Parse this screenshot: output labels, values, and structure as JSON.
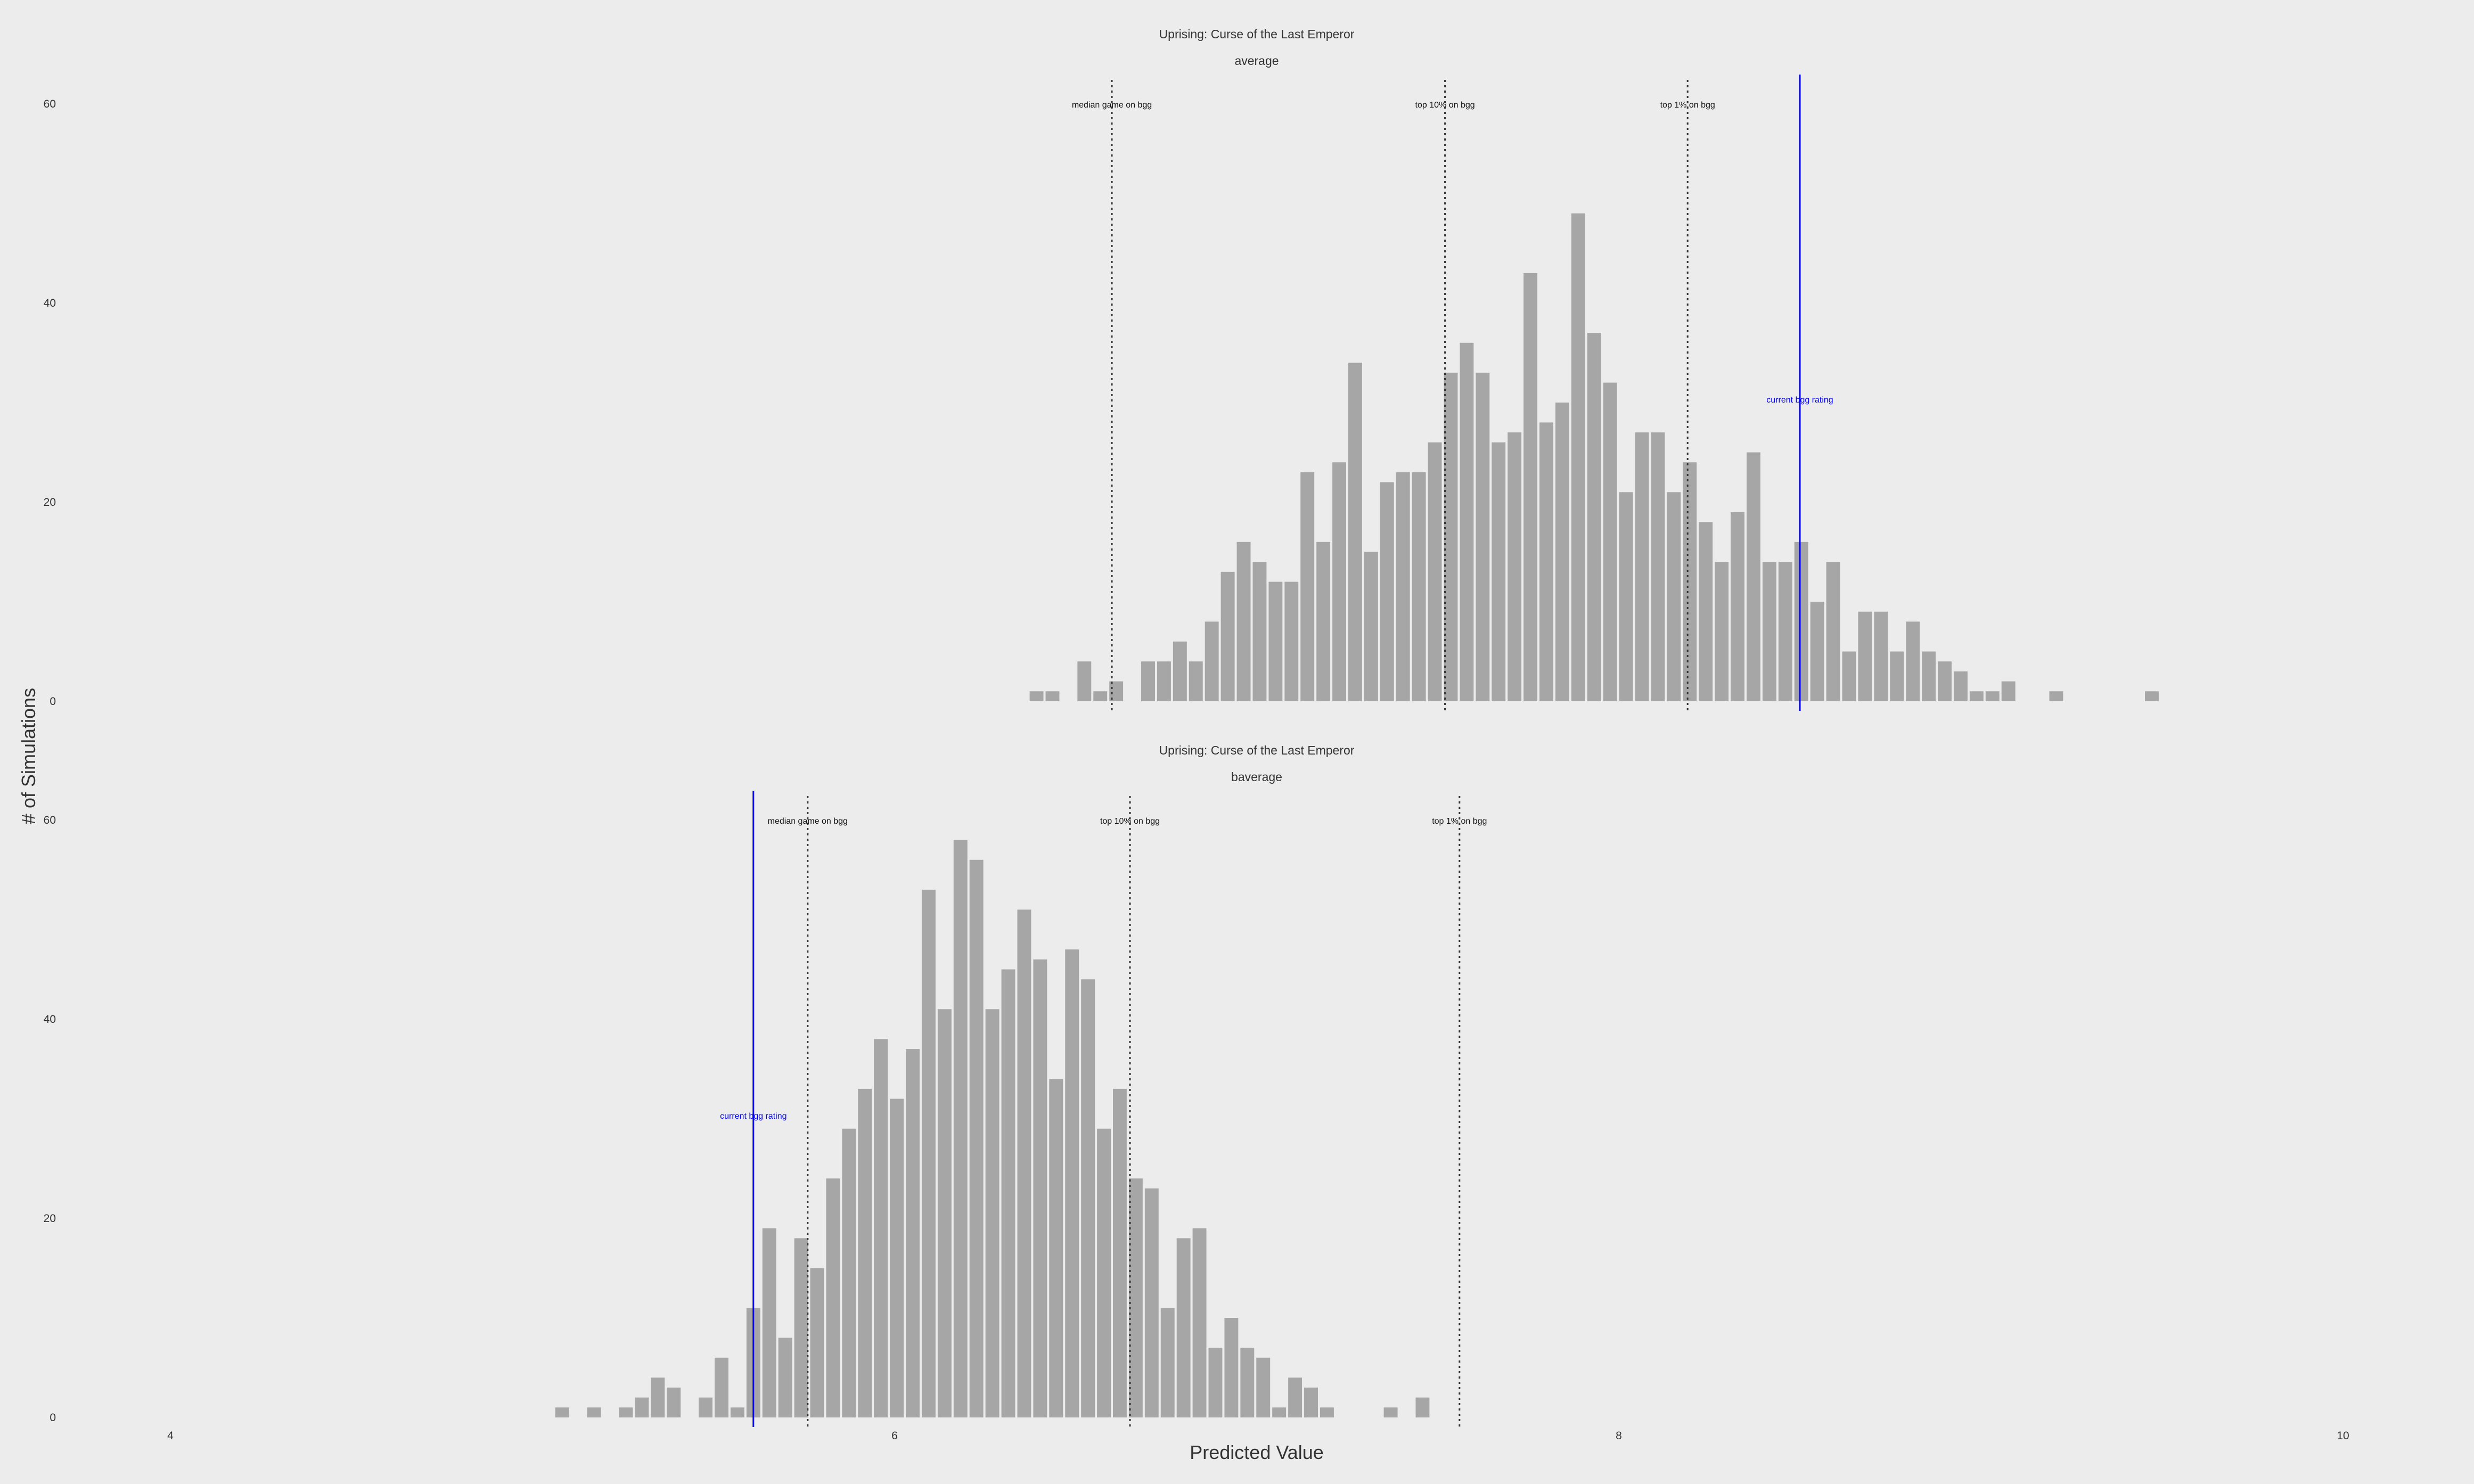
{
  "xlabel": "Predicted Value",
  "ylabel": "# of Simulations",
  "x_ticks": [
    4,
    6,
    8,
    10
  ],
  "colors": {
    "bar": "#a6a6a6",
    "current": "#0000ff",
    "ref": "#333333",
    "text": "#333333",
    "background": "#ececec"
  },
  "chart_data": [
    {
      "type": "bar",
      "title": "Uprising: Curse of the Last Emperor",
      "subtitle": "average",
      "xlim": [
        4,
        10
      ],
      "ylim": [
        0,
        60
      ],
      "y_ticks": [
        0,
        20,
        40,
        60
      ],
      "bin_start": 6.37,
      "bin_width": 0.044,
      "values": [
        1,
        1,
        0,
        4,
        1,
        2,
        0,
        4,
        4,
        6,
        4,
        8,
        13,
        16,
        14,
        12,
        12,
        23,
        16,
        24,
        34,
        15,
        22,
        23,
        23,
        26,
        33,
        36,
        33,
        26,
        27,
        43,
        28,
        30,
        49,
        37,
        32,
        21,
        27,
        27,
        21,
        24,
        18,
        14,
        19,
        25,
        14,
        14,
        16,
        10,
        14,
        5,
        9,
        9,
        5,
        8,
        5,
        4,
        3,
        1,
        1,
        2,
        0,
        0,
        1,
        0,
        0,
        0,
        0,
        0,
        1
      ],
      "current_rating": 8.5,
      "current_label": "current bgg rating",
      "reference_lines": [
        {
          "value": 6.6,
          "label": "median game on bgg"
        },
        {
          "value": 7.52,
          "label": "top 10% on bgg"
        },
        {
          "value": 8.19,
          "label": "top 1% on bgg"
        }
      ]
    },
    {
      "type": "bar",
      "title": "Uprising: Curse of the Last Emperor",
      "subtitle": "baverage",
      "xlim": [
        4,
        10
      ],
      "ylim": [
        0,
        60
      ],
      "y_ticks": [
        0,
        20,
        40,
        60
      ],
      "bin_start": 5.06,
      "bin_width": 0.044,
      "values": [
        1,
        0,
        1,
        0,
        1,
        2,
        4,
        3,
        0,
        2,
        6,
        1,
        11,
        19,
        8,
        18,
        15,
        24,
        29,
        33,
        38,
        32,
        37,
        53,
        41,
        58,
        56,
        41,
        45,
        51,
        46,
        34,
        47,
        44,
        29,
        33,
        24,
        23,
        11,
        18,
        19,
        7,
        10,
        7,
        6,
        1,
        4,
        3,
        1,
        0,
        0,
        0,
        1,
        0,
        2
      ],
      "current_rating": 5.61,
      "current_label": "current bgg rating",
      "reference_lines": [
        {
          "value": 5.76,
          "label": "median game on bgg"
        },
        {
          "value": 6.65,
          "label": "top 10% on bgg"
        },
        {
          "value": 7.56,
          "label": "top 1% on bgg"
        }
      ]
    }
  ]
}
